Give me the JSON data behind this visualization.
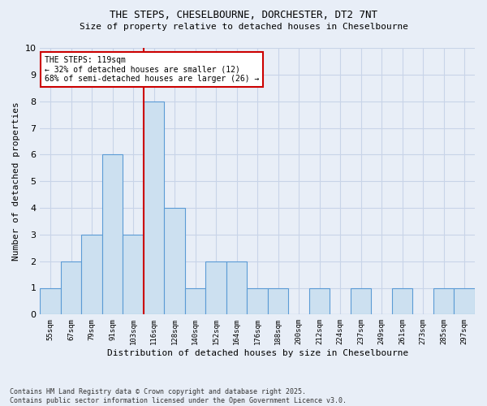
{
  "title1": "THE STEPS, CHESELBOURNE, DORCHESTER, DT2 7NT",
  "title2": "Size of property relative to detached houses in Cheselbourne",
  "xlabel": "Distribution of detached houses by size in Cheselbourne",
  "ylabel": "Number of detached properties",
  "bins": [
    "55sqm",
    "67sqm",
    "79sqm",
    "91sqm",
    "103sqm",
    "116sqm",
    "128sqm",
    "140sqm",
    "152sqm",
    "164sqm",
    "176sqm",
    "188sqm",
    "200sqm",
    "212sqm",
    "224sqm",
    "237sqm",
    "249sqm",
    "261sqm",
    "273sqm",
    "285sqm",
    "297sqm"
  ],
  "values": [
    1,
    2,
    3,
    6,
    3,
    8,
    4,
    1,
    2,
    2,
    1,
    1,
    0,
    1,
    0,
    1,
    0,
    1,
    0,
    1,
    1
  ],
  "bar_color": "#cce0f0",
  "bar_edge_color": "#5b9bd5",
  "ref_line_color": "#cc0000",
  "annotation_text": "THE STEPS: 119sqm\n← 32% of detached houses are smaller (12)\n68% of semi-detached houses are larger (26) →",
  "annotation_box_color": "#ffffff",
  "annotation_box_edge_color": "#cc0000",
  "footer": "Contains HM Land Registry data © Crown copyright and database right 2025.\nContains public sector information licensed under the Open Government Licence v3.0.",
  "ylim": [
    0,
    10
  ],
  "background_color": "#e8eef7",
  "grid_color": "#c8d4e8"
}
